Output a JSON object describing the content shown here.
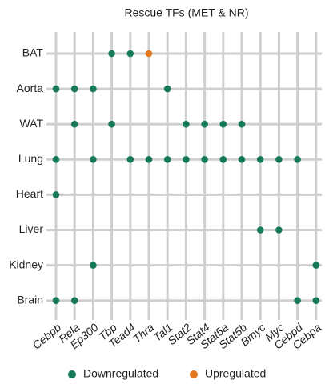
{
  "chart_data": {
    "type": "dotmatrix",
    "title": "Rescue TFs (MET & NR)",
    "x_categories": [
      "Cebpb",
      "Rela",
      "Ep300",
      "Tbp",
      "Tead4",
      "Thra",
      "Tal1",
      "Stat2",
      "Stat4",
      "Stat5a",
      "Stat5b",
      "Bmyc",
      "Myc",
      "Cebpd",
      "Cebpa"
    ],
    "y_categories": [
      "BAT",
      "Aorta",
      "WAT",
      "Lung",
      "Heart",
      "Liver",
      "Kidney",
      "Brain"
    ],
    "series": [
      {
        "name": "Downregulated",
        "color": "#167a58",
        "points": [
          [
            "Tbp",
            "BAT"
          ],
          [
            "Tead4",
            "BAT"
          ],
          [
            "Cebpb",
            "Aorta"
          ],
          [
            "Rela",
            "Aorta"
          ],
          [
            "Ep300",
            "Aorta"
          ],
          [
            "Tal1",
            "Aorta"
          ],
          [
            "Rela",
            "WAT"
          ],
          [
            "Tbp",
            "WAT"
          ],
          [
            "Stat2",
            "WAT"
          ],
          [
            "Stat4",
            "WAT"
          ],
          [
            "Stat5a",
            "WAT"
          ],
          [
            "Stat5b",
            "WAT"
          ],
          [
            "Cebpb",
            "Lung"
          ],
          [
            "Ep300",
            "Lung"
          ],
          [
            "Tead4",
            "Lung"
          ],
          [
            "Thra",
            "Lung"
          ],
          [
            "Tal1",
            "Lung"
          ],
          [
            "Stat2",
            "Lung"
          ],
          [
            "Stat4",
            "Lung"
          ],
          [
            "Stat5a",
            "Lung"
          ],
          [
            "Stat5b",
            "Lung"
          ],
          [
            "Bmyc",
            "Lung"
          ],
          [
            "Myc",
            "Lung"
          ],
          [
            "Cebpd",
            "Lung"
          ],
          [
            "Cebpb",
            "Heart"
          ],
          [
            "Bmyc",
            "Liver"
          ],
          [
            "Myc",
            "Liver"
          ],
          [
            "Ep300",
            "Kidney"
          ],
          [
            "Cebpa",
            "Kidney"
          ],
          [
            "Cebpb",
            "Brain"
          ],
          [
            "Rela",
            "Brain"
          ],
          [
            "Cebpd",
            "Brain"
          ],
          [
            "Cebpa",
            "Brain"
          ]
        ]
      },
      {
        "name": "Upregulated",
        "color": "#e4781e",
        "points": [
          [
            "Thra",
            "BAT"
          ]
        ]
      }
    ]
  }
}
